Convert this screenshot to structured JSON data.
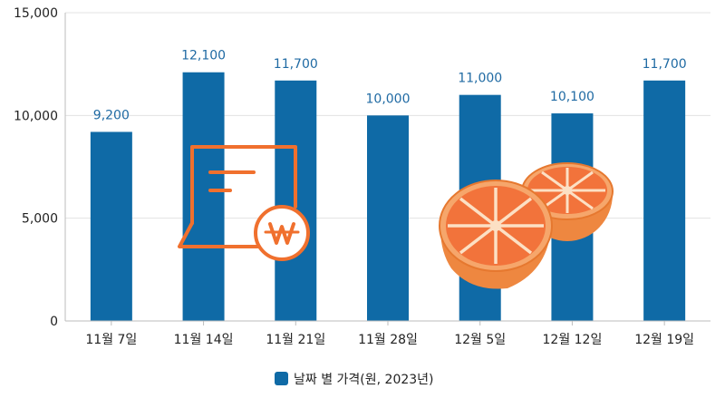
{
  "chart_data": {
    "type": "bar",
    "categories": [
      "11월 7일",
      "11월 14일",
      "11월 21일",
      "11월 28일",
      "12월 5일",
      "12월 12일",
      "12월 19일"
    ],
    "series": [
      {
        "name": "날짜 별 가격(원, 2023년)",
        "values": [
          9200,
          12100,
          11700,
          10000,
          11000,
          10100,
          11700
        ]
      }
    ],
    "data_labels": [
      "9,200",
      "12,100",
      "11,700",
      "10,000",
      "11,000",
      "10,100",
      "11,700"
    ],
    "y_ticks": [
      "0",
      "5,000",
      "10,000",
      "15,000"
    ],
    "y_tick_values": [
      0,
      5000,
      10000,
      15000
    ],
    "ylim": [
      0,
      15000
    ],
    "grid": true,
    "legend_position": "bottom-center",
    "colors": {
      "bar": "#0f6aa6",
      "data_label": "#1f6aa3",
      "grid": "#e3e3e3",
      "axis": "#bdbdbd",
      "icon": "#f0702e"
    }
  },
  "decorations": [
    "price-receipt-won-icon",
    "orange-halves-illustration"
  ]
}
